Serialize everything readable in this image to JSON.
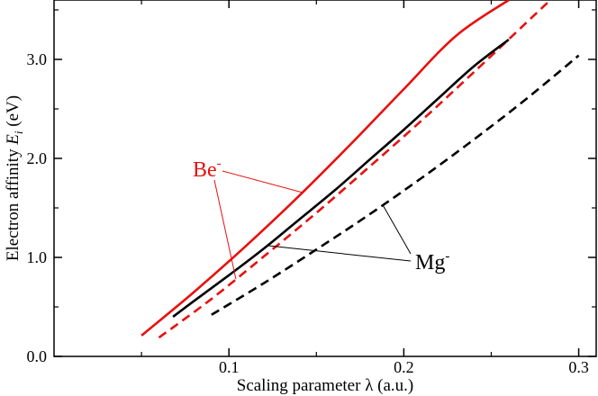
{
  "chart_data": {
    "type": "line",
    "xlabel_text": "Scaling parameter ",
    "xlabel_symbol": "λ",
    "xlabel_unit": " (a.u.)",
    "ylabel_text": "Electron affinity ",
    "ylabel_symbol": "E",
    "ylabel_sub": "i",
    "ylabel_unit": " (eV)",
    "xlim": [
      0.0,
      0.31
    ],
    "ylim": [
      0.0,
      3.6
    ],
    "xticks": [
      {
        "v": 0.1,
        "label": "0.1"
      },
      {
        "v": 0.2,
        "label": "0.2"
      },
      {
        "v": 0.3,
        "label": "0.3"
      }
    ],
    "yticks": [
      {
        "v": 0.0,
        "label": "0.0"
      },
      {
        "v": 1.0,
        "label": "1.0"
      },
      {
        "v": 2.0,
        "label": "2.0"
      },
      {
        "v": 3.0,
        "label": "3.0"
      }
    ],
    "series": [
      {
        "color": "#e8110f",
        "dash": false,
        "x": [
          0.05,
          0.08,
          0.11,
          0.14,
          0.17,
          0.2,
          0.23,
          0.26
        ],
        "y": [
          0.21,
          0.65,
          1.12,
          1.62,
          2.15,
          2.7,
          3.24,
          3.6
        ]
      },
      {
        "color": "#e8110f",
        "dash": true,
        "x": [
          0.06,
          0.09,
          0.12,
          0.15,
          0.18,
          0.21,
          0.24,
          0.27,
          0.285
        ],
        "y": [
          0.19,
          0.58,
          1.01,
          1.45,
          1.91,
          2.38,
          2.87,
          3.37,
          3.62
        ]
      },
      {
        "color": "#000000",
        "dash": false,
        "x": [
          0.068,
          0.08,
          0.1,
          0.12,
          0.14,
          0.16,
          0.18,
          0.2,
          0.22,
          0.24,
          0.26
        ],
        "y": [
          0.4,
          0.56,
          0.82,
          1.09,
          1.38,
          1.67,
          1.98,
          2.29,
          2.61,
          2.93,
          3.2
        ]
      },
      {
        "color": "#000000",
        "dash": true,
        "x": [
          0.09,
          0.12,
          0.15,
          0.18,
          0.21,
          0.24,
          0.27,
          0.3
        ],
        "y": [
          0.42,
          0.74,
          1.08,
          1.43,
          1.8,
          2.19,
          2.6,
          3.04
        ]
      }
    ],
    "annotations": [
      {
        "text": "Be",
        "sup": "-",
        "color": "#e8110f"
      },
      {
        "text": "Mg",
        "sup": "-",
        "color": "#000000"
      }
    ]
  }
}
